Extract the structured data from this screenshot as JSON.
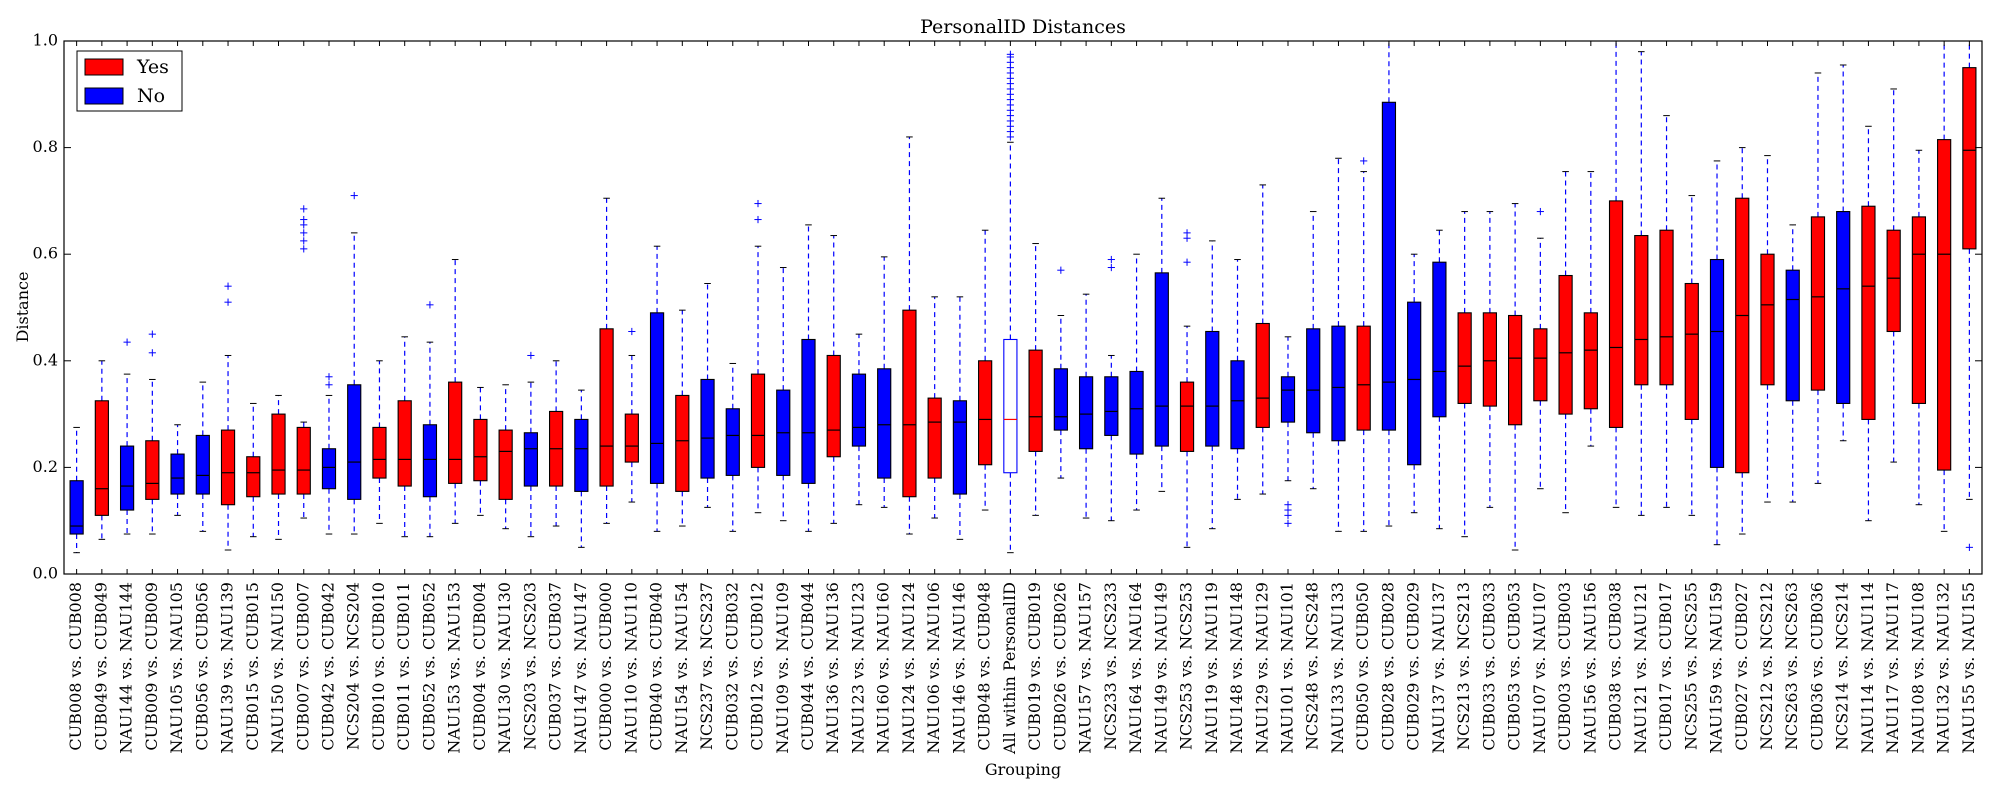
{
  "chart_data": {
    "type": "boxplot",
    "title": "PersonalID Distances",
    "xlabel": "Grouping",
    "ylabel": "Distance",
    "ylim": [
      0,
      1.0
    ],
    "yticks": [
      "0.0",
      "0.2",
      "0.4",
      "0.6",
      "0.8",
      "1.0"
    ],
    "legend": {
      "placement": "top-left",
      "entries": [
        {
          "label": "Yes",
          "color": "#ff0000"
        },
        {
          "label": "No",
          "color": "#0000ff"
        }
      ]
    },
    "colors": {
      "yes": "#ff0000",
      "no": "#0000ff",
      "hollow": "#ffffff",
      "whisker": "#0000ff",
      "median_on_red": "#000000",
      "median_on_blue": "#000000",
      "median_hollow": "#ff0000"
    },
    "boxes": [
      {
        "label": "CUB008 vs. CUB008",
        "group": "no",
        "whislo": 0.04,
        "q1": 0.075,
        "med": 0.09,
        "q3": 0.175,
        "whishi": 0.275,
        "fliers": []
      },
      {
        "label": "CUB049 vs. CUB049",
        "group": "yes",
        "whislo": 0.065,
        "q1": 0.11,
        "med": 0.16,
        "q3": 0.325,
        "whishi": 0.4,
        "fliers": []
      },
      {
        "label": "NAU144 vs. NAU144",
        "group": "no",
        "whislo": 0.075,
        "q1": 0.12,
        "med": 0.165,
        "q3": 0.24,
        "whishi": 0.375,
        "fliers": [
          0.435
        ]
      },
      {
        "label": "CUB009 vs. CUB009",
        "group": "yes",
        "whislo": 0.075,
        "q1": 0.14,
        "med": 0.17,
        "q3": 0.25,
        "whishi": 0.365,
        "fliers": [
          0.415,
          0.45
        ]
      },
      {
        "label": "NAU105 vs. NAU105",
        "group": "no",
        "whislo": 0.11,
        "q1": 0.15,
        "med": 0.18,
        "q3": 0.225,
        "whishi": 0.28,
        "fliers": []
      },
      {
        "label": "CUB056 vs. CUB056",
        "group": "no",
        "whislo": 0.08,
        "q1": 0.15,
        "med": 0.185,
        "q3": 0.26,
        "whishi": 0.36,
        "fliers": []
      },
      {
        "label": "NAU139 vs. NAU139",
        "group": "yes",
        "whislo": 0.045,
        "q1": 0.13,
        "med": 0.19,
        "q3": 0.27,
        "whishi": 0.41,
        "fliers": [
          0.51,
          0.54
        ]
      },
      {
        "label": "CUB015 vs. CUB015",
        "group": "yes",
        "whislo": 0.07,
        "q1": 0.145,
        "med": 0.19,
        "q3": 0.22,
        "whishi": 0.32,
        "fliers": []
      },
      {
        "label": "NAU150 vs. NAU150",
        "group": "yes",
        "whislo": 0.065,
        "q1": 0.15,
        "med": 0.195,
        "q3": 0.3,
        "whishi": 0.335,
        "fliers": []
      },
      {
        "label": "CUB007 vs. CUB007",
        "group": "yes",
        "whislo": 0.105,
        "q1": 0.15,
        "med": 0.195,
        "q3": 0.275,
        "whishi": 0.285,
        "fliers": [
          0.61,
          0.625,
          0.64,
          0.655,
          0.665,
          0.685
        ]
      },
      {
        "label": "CUB042 vs. CUB042",
        "group": "no",
        "whislo": 0.075,
        "q1": 0.16,
        "med": 0.2,
        "q3": 0.235,
        "whishi": 0.335,
        "fliers": [
          0.355,
          0.37
        ]
      },
      {
        "label": "NCS204 vs. NCS204",
        "group": "no",
        "whislo": 0.075,
        "q1": 0.14,
        "med": 0.21,
        "q3": 0.355,
        "whishi": 0.64,
        "fliers": [
          0.71
        ]
      },
      {
        "label": "CUB010 vs. CUB010",
        "group": "yes",
        "whislo": 0.095,
        "q1": 0.18,
        "med": 0.215,
        "q3": 0.275,
        "whishi": 0.4,
        "fliers": []
      },
      {
        "label": "CUB011 vs. CUB011",
        "group": "yes",
        "whislo": 0.07,
        "q1": 0.165,
        "med": 0.215,
        "q3": 0.325,
        "whishi": 0.445,
        "fliers": []
      },
      {
        "label": "CUB052 vs. CUB052",
        "group": "no",
        "whislo": 0.07,
        "q1": 0.145,
        "med": 0.215,
        "q3": 0.28,
        "whishi": 0.435,
        "fliers": [
          0.505
        ]
      },
      {
        "label": "NAU153 vs. NAU153",
        "group": "yes",
        "whislo": 0.095,
        "q1": 0.17,
        "med": 0.215,
        "q3": 0.36,
        "whishi": 0.59,
        "fliers": []
      },
      {
        "label": "CUB004 vs. CUB004",
        "group": "yes",
        "whislo": 0.11,
        "q1": 0.175,
        "med": 0.22,
        "q3": 0.29,
        "whishi": 0.35,
        "fliers": []
      },
      {
        "label": "NAU130 vs. NAU130",
        "group": "yes",
        "whislo": 0.085,
        "q1": 0.14,
        "med": 0.23,
        "q3": 0.27,
        "whishi": 0.355,
        "fliers": []
      },
      {
        "label": "NCS203 vs. NCS203",
        "group": "no",
        "whislo": 0.07,
        "q1": 0.165,
        "med": 0.235,
        "q3": 0.265,
        "whishi": 0.36,
        "fliers": [
          0.41
        ]
      },
      {
        "label": "CUB037 vs. CUB037",
        "group": "yes",
        "whislo": 0.09,
        "q1": 0.165,
        "med": 0.235,
        "q3": 0.305,
        "whishi": 0.4,
        "fliers": []
      },
      {
        "label": "NAU147 vs. NAU147",
        "group": "no",
        "whislo": 0.05,
        "q1": 0.155,
        "med": 0.235,
        "q3": 0.29,
        "whishi": 0.345,
        "fliers": []
      },
      {
        "label": "CUB000 vs. CUB000",
        "group": "yes",
        "whislo": 0.095,
        "q1": 0.165,
        "med": 0.24,
        "q3": 0.46,
        "whishi": 0.705,
        "fliers": []
      },
      {
        "label": "NAU110 vs. NAU110",
        "group": "yes",
        "whislo": 0.135,
        "q1": 0.21,
        "med": 0.24,
        "q3": 0.3,
        "whishi": 0.41,
        "fliers": [
          0.455
        ]
      },
      {
        "label": "CUB040 vs. CUB040",
        "group": "no",
        "whislo": 0.08,
        "q1": 0.17,
        "med": 0.245,
        "q3": 0.49,
        "whishi": 0.615,
        "fliers": []
      },
      {
        "label": "NAU154 vs. NAU154",
        "group": "yes",
        "whislo": 0.09,
        "q1": 0.155,
        "med": 0.25,
        "q3": 0.335,
        "whishi": 0.495,
        "fliers": []
      },
      {
        "label": "NCS237 vs. NCS237",
        "group": "no",
        "whislo": 0.125,
        "q1": 0.18,
        "med": 0.255,
        "q3": 0.365,
        "whishi": 0.545,
        "fliers": []
      },
      {
        "label": "CUB032 vs. CUB032",
        "group": "no",
        "whislo": 0.08,
        "q1": 0.185,
        "med": 0.26,
        "q3": 0.31,
        "whishi": 0.395,
        "fliers": []
      },
      {
        "label": "CUB012 vs. CUB012",
        "group": "yes",
        "whislo": 0.115,
        "q1": 0.2,
        "med": 0.26,
        "q3": 0.375,
        "whishi": 0.615,
        "fliers": [
          0.665,
          0.695
        ]
      },
      {
        "label": "NAU109 vs. NAU109",
        "group": "no",
        "whislo": 0.1,
        "q1": 0.185,
        "med": 0.265,
        "q3": 0.345,
        "whishi": 0.575,
        "fliers": []
      },
      {
        "label": "CUB044 vs. CUB044",
        "group": "no",
        "whislo": 0.08,
        "q1": 0.17,
        "med": 0.265,
        "q3": 0.44,
        "whishi": 0.655,
        "fliers": []
      },
      {
        "label": "NAU136 vs. NAU136",
        "group": "yes",
        "whislo": 0.095,
        "q1": 0.22,
        "med": 0.27,
        "q3": 0.41,
        "whishi": 0.635,
        "fliers": []
      },
      {
        "label": "NAU123 vs. NAU123",
        "group": "no",
        "whislo": 0.13,
        "q1": 0.24,
        "med": 0.275,
        "q3": 0.375,
        "whishi": 0.45,
        "fliers": []
      },
      {
        "label": "NAU160 vs. NAU160",
        "group": "no",
        "whislo": 0.125,
        "q1": 0.18,
        "med": 0.28,
        "q3": 0.385,
        "whishi": 0.595,
        "fliers": []
      },
      {
        "label": "NAU124 vs. NAU124",
        "group": "yes",
        "whislo": 0.075,
        "q1": 0.145,
        "med": 0.28,
        "q3": 0.495,
        "whishi": 0.82,
        "fliers": []
      },
      {
        "label": "NAU106 vs. NAU106",
        "group": "yes",
        "whislo": 0.105,
        "q1": 0.18,
        "med": 0.285,
        "q3": 0.33,
        "whishi": 0.52,
        "fliers": []
      },
      {
        "label": "NAU146 vs. NAU146",
        "group": "no",
        "whislo": 0.065,
        "q1": 0.15,
        "med": 0.285,
        "q3": 0.325,
        "whishi": 0.52,
        "fliers": []
      },
      {
        "label": "CUB048 vs. CUB048",
        "group": "yes",
        "whislo": 0.12,
        "q1": 0.205,
        "med": 0.29,
        "q3": 0.4,
        "whishi": 0.645,
        "fliers": []
      },
      {
        "label": "All within PersonalID",
        "group": "hollow",
        "whislo": 0.04,
        "q1": 0.19,
        "med": 0.29,
        "q3": 0.44,
        "whishi": 0.81,
        "fliers": [
          0.82,
          0.83,
          0.84,
          0.85,
          0.86,
          0.87,
          0.88,
          0.89,
          0.9,
          0.91,
          0.92,
          0.93,
          0.94,
          0.95,
          0.96,
          0.97,
          0.975
        ]
      },
      {
        "label": "CUB019 vs. CUB019",
        "group": "yes",
        "whislo": 0.11,
        "q1": 0.23,
        "med": 0.295,
        "q3": 0.42,
        "whishi": 0.62,
        "fliers": []
      },
      {
        "label": "CUB026 vs. CUB026",
        "group": "no",
        "whislo": 0.18,
        "q1": 0.27,
        "med": 0.295,
        "q3": 0.385,
        "whishi": 0.485,
        "fliers": [
          0.57
        ]
      },
      {
        "label": "NAU157 vs. NAU157",
        "group": "no",
        "whislo": 0.105,
        "q1": 0.235,
        "med": 0.3,
        "q3": 0.37,
        "whishi": 0.525,
        "fliers": []
      },
      {
        "label": "NCS233 vs. NCS233",
        "group": "no",
        "whislo": 0.1,
        "q1": 0.26,
        "med": 0.305,
        "q3": 0.37,
        "whishi": 0.41,
        "fliers": [
          0.575,
          0.59
        ]
      },
      {
        "label": "NAU164 vs. NAU164",
        "group": "no",
        "whislo": 0.12,
        "q1": 0.225,
        "med": 0.31,
        "q3": 0.38,
        "whishi": 0.6,
        "fliers": []
      },
      {
        "label": "NAU149 vs. NAU149",
        "group": "no",
        "whislo": 0.155,
        "q1": 0.24,
        "med": 0.315,
        "q3": 0.565,
        "whishi": 0.705,
        "fliers": []
      },
      {
        "label": "NCS253 vs. NCS253",
        "group": "yes",
        "whislo": 0.05,
        "q1": 0.23,
        "med": 0.315,
        "q3": 0.36,
        "whishi": 0.465,
        "fliers": [
          0.585,
          0.63,
          0.64
        ]
      },
      {
        "label": "NAU119 vs. NAU119",
        "group": "no",
        "whislo": 0.085,
        "q1": 0.24,
        "med": 0.315,
        "q3": 0.455,
        "whishi": 0.625,
        "fliers": []
      },
      {
        "label": "NAU148 vs. NAU148",
        "group": "no",
        "whislo": 0.14,
        "q1": 0.235,
        "med": 0.325,
        "q3": 0.4,
        "whishi": 0.59,
        "fliers": []
      },
      {
        "label": "NAU129 vs. NAU129",
        "group": "yes",
        "whislo": 0.15,
        "q1": 0.275,
        "med": 0.33,
        "q3": 0.47,
        "whishi": 0.73,
        "fliers": []
      },
      {
        "label": "NAU101 vs. NAU101",
        "group": "no",
        "whislo": 0.175,
        "q1": 0.285,
        "med": 0.345,
        "q3": 0.37,
        "whishi": 0.445,
        "fliers": [
          0.095,
          0.11,
          0.12,
          0.13
        ]
      },
      {
        "label": "NCS248 vs. NCS248",
        "group": "no",
        "whislo": 0.16,
        "q1": 0.265,
        "med": 0.345,
        "q3": 0.46,
        "whishi": 0.68,
        "fliers": []
      },
      {
        "label": "NAU133 vs. NAU133",
        "group": "no",
        "whislo": 0.08,
        "q1": 0.25,
        "med": 0.35,
        "q3": 0.465,
        "whishi": 0.78,
        "fliers": []
      },
      {
        "label": "CUB050 vs. CUB050",
        "group": "yes",
        "whislo": 0.08,
        "q1": 0.27,
        "med": 0.355,
        "q3": 0.465,
        "whishi": 0.755,
        "fliers": [
          0.775
        ]
      },
      {
        "label": "CUB028 vs. CUB028",
        "group": "no",
        "whislo": 0.09,
        "q1": 0.27,
        "med": 0.36,
        "q3": 0.885,
        "whishi": 1.0,
        "fliers": []
      },
      {
        "label": "CUB029 vs. CUB029",
        "group": "no",
        "whislo": 0.115,
        "q1": 0.205,
        "med": 0.365,
        "q3": 0.51,
        "whishi": 0.6,
        "fliers": []
      },
      {
        "label": "NAU137 vs. NAU137",
        "group": "no",
        "whislo": 0.085,
        "q1": 0.295,
        "med": 0.38,
        "q3": 0.585,
        "whishi": 0.645,
        "fliers": []
      },
      {
        "label": "NCS213 vs. NCS213",
        "group": "yes",
        "whislo": 0.07,
        "q1": 0.32,
        "med": 0.39,
        "q3": 0.49,
        "whishi": 0.68,
        "fliers": []
      },
      {
        "label": "CUB033 vs. CUB033",
        "group": "yes",
        "whislo": 0.125,
        "q1": 0.315,
        "med": 0.4,
        "q3": 0.49,
        "whishi": 0.68,
        "fliers": []
      },
      {
        "label": "CUB053 vs. CUB053",
        "group": "yes",
        "whislo": 0.045,
        "q1": 0.28,
        "med": 0.405,
        "q3": 0.485,
        "whishi": 0.695,
        "fliers": []
      },
      {
        "label": "NAU107 vs. NAU107",
        "group": "yes",
        "whislo": 0.16,
        "q1": 0.325,
        "med": 0.405,
        "q3": 0.46,
        "whishi": 0.63,
        "fliers": [
          0.68
        ]
      },
      {
        "label": "CUB003 vs. CUB003",
        "group": "yes",
        "whislo": 0.115,
        "q1": 0.3,
        "med": 0.415,
        "q3": 0.56,
        "whishi": 0.755,
        "fliers": []
      },
      {
        "label": "NAU156 vs. NAU156",
        "group": "yes",
        "whislo": 0.24,
        "q1": 0.31,
        "med": 0.42,
        "q3": 0.49,
        "whishi": 0.755,
        "fliers": []
      },
      {
        "label": "CUB038 vs. CUB038",
        "group": "yes",
        "whislo": 0.125,
        "q1": 0.275,
        "med": 0.425,
        "q3": 0.7,
        "whishi": 1.0,
        "fliers": []
      },
      {
        "label": "NAU121 vs. NAU121",
        "group": "yes",
        "whislo": 0.11,
        "q1": 0.355,
        "med": 0.44,
        "q3": 0.635,
        "whishi": 0.98,
        "fliers": []
      },
      {
        "label": "CUB017 vs. CUB017",
        "group": "yes",
        "whislo": 0.125,
        "q1": 0.355,
        "med": 0.445,
        "q3": 0.645,
        "whishi": 0.86,
        "fliers": []
      },
      {
        "label": "NCS255 vs. NCS255",
        "group": "yes",
        "whislo": 0.11,
        "q1": 0.29,
        "med": 0.45,
        "q3": 0.545,
        "whishi": 0.71,
        "fliers": []
      },
      {
        "label": "NAU159 vs. NAU159",
        "group": "no",
        "whislo": 0.055,
        "q1": 0.2,
        "med": 0.455,
        "q3": 0.59,
        "whishi": 0.775,
        "fliers": []
      },
      {
        "label": "CUB027 vs. CUB027",
        "group": "yes",
        "whislo": 0.075,
        "q1": 0.19,
        "med": 0.485,
        "q3": 0.705,
        "whishi": 0.8,
        "fliers": []
      },
      {
        "label": "NCS212 vs. NCS212",
        "group": "yes",
        "whislo": 0.135,
        "q1": 0.355,
        "med": 0.505,
        "q3": 0.6,
        "whishi": 0.785,
        "fliers": []
      },
      {
        "label": "NCS263 vs. NCS263",
        "group": "no",
        "whislo": 0.135,
        "q1": 0.325,
        "med": 0.515,
        "q3": 0.57,
        "whishi": 0.655,
        "fliers": []
      },
      {
        "label": "CUB036 vs. CUB036",
        "group": "yes",
        "whislo": 0.17,
        "q1": 0.345,
        "med": 0.52,
        "q3": 0.67,
        "whishi": 0.94,
        "fliers": []
      },
      {
        "label": "NCS214 vs. NCS214",
        "group": "no",
        "whislo": 0.25,
        "q1": 0.32,
        "med": 0.535,
        "q3": 0.68,
        "whishi": 0.955,
        "fliers": []
      },
      {
        "label": "NAU114 vs. NAU114",
        "group": "yes",
        "whislo": 0.1,
        "q1": 0.29,
        "med": 0.54,
        "q3": 0.69,
        "whishi": 0.84,
        "fliers": []
      },
      {
        "label": "NAU117 vs. NAU117",
        "group": "yes",
        "whislo": 0.21,
        "q1": 0.455,
        "med": 0.555,
        "q3": 0.645,
        "whishi": 0.91,
        "fliers": []
      },
      {
        "label": "NAU108 vs. NAU108",
        "group": "yes",
        "whislo": 0.13,
        "q1": 0.32,
        "med": 0.6,
        "q3": 0.67,
        "whishi": 0.795,
        "fliers": []
      },
      {
        "label": "NAU132 vs. NAU132",
        "group": "yes",
        "whislo": 0.08,
        "q1": 0.195,
        "med": 0.6,
        "q3": 0.815,
        "whishi": 1.0,
        "fliers": []
      },
      {
        "label": "NAU155 vs. NAU155",
        "group": "yes",
        "whislo": 0.14,
        "q1": 0.61,
        "med": 0.795,
        "q3": 0.95,
        "whishi": 1.0,
        "fliers": [
          0.05
        ]
      }
    ]
  }
}
